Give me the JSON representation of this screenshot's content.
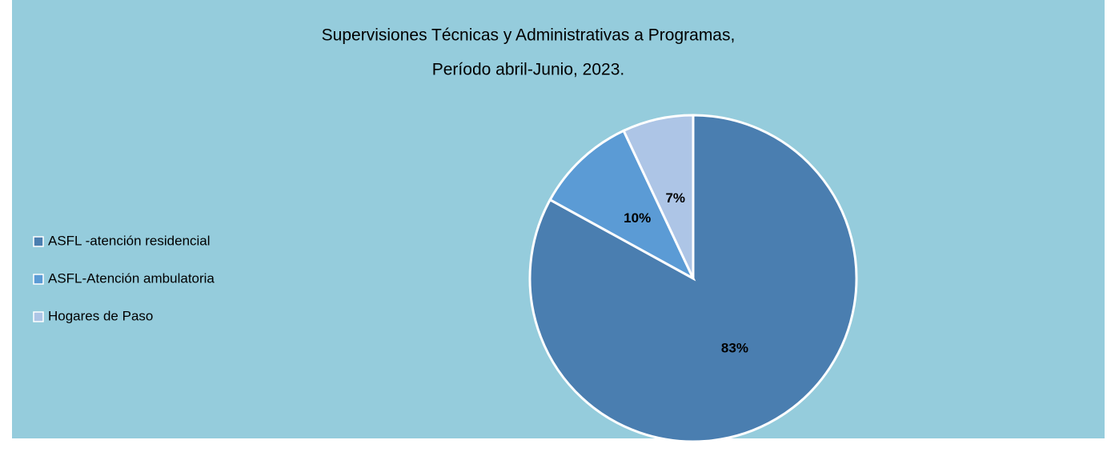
{
  "chart_data": {
    "type": "pie",
    "title": "Supervisiones Técnicas y Administrativas a Programas,",
    "subtitle": "Período abril-Junio, 2023.",
    "categories": [
      "ASFL -atención residencial",
      "ASFL-Atención ambulatoria",
      "Hogares de Paso"
    ],
    "values": [
      83,
      10,
      7
    ],
    "value_labels": [
      "83%",
      "10%",
      "7%"
    ],
    "colors": [
      "#4a7eb0",
      "#5b9bd5",
      "#adc5e6"
    ],
    "legend": "left"
  }
}
